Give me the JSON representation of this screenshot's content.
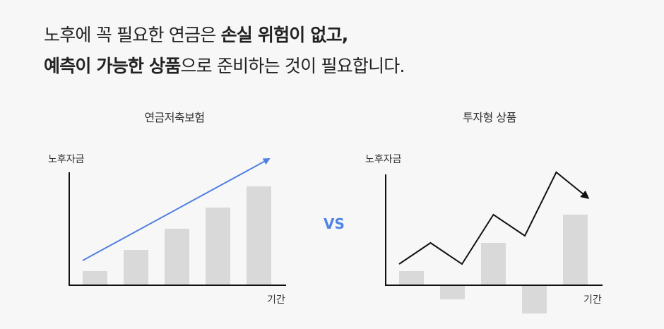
{
  "headline": {
    "line1_prefix": "노후에 꼭 필요한 연금은 ",
    "line1_bold": "손실 위험이 없고,",
    "line2_bold": "예측이 가능한 상품",
    "line2_suffix": "으로 준비하는 것이 필요합니다."
  },
  "vs_label": "VS",
  "colors": {
    "bar": "#d9d9d9",
    "arrow_left": "#4f7fe0",
    "line_right": "#111111",
    "axis": "#111111",
    "vs": "#4f84e3"
  },
  "chart_data": [
    {
      "type": "bar",
      "title": "연금저축보험",
      "ylabel": "노후자금",
      "xlabel": "기간",
      "values": [
        1,
        2.5,
        4,
        5.5,
        7
      ],
      "trend": "up-arrow",
      "ylim": [
        0,
        8
      ]
    },
    {
      "type": "bar",
      "title": "투자형 상품",
      "ylabel": "노후자금",
      "xlabel": "기간",
      "values": [
        1,
        -1,
        3,
        -2,
        5
      ],
      "line": [
        1.5,
        3,
        1.5,
        5,
        3.5,
        8,
        5
      ],
      "ylim": [
        -2,
        8
      ]
    }
  ]
}
